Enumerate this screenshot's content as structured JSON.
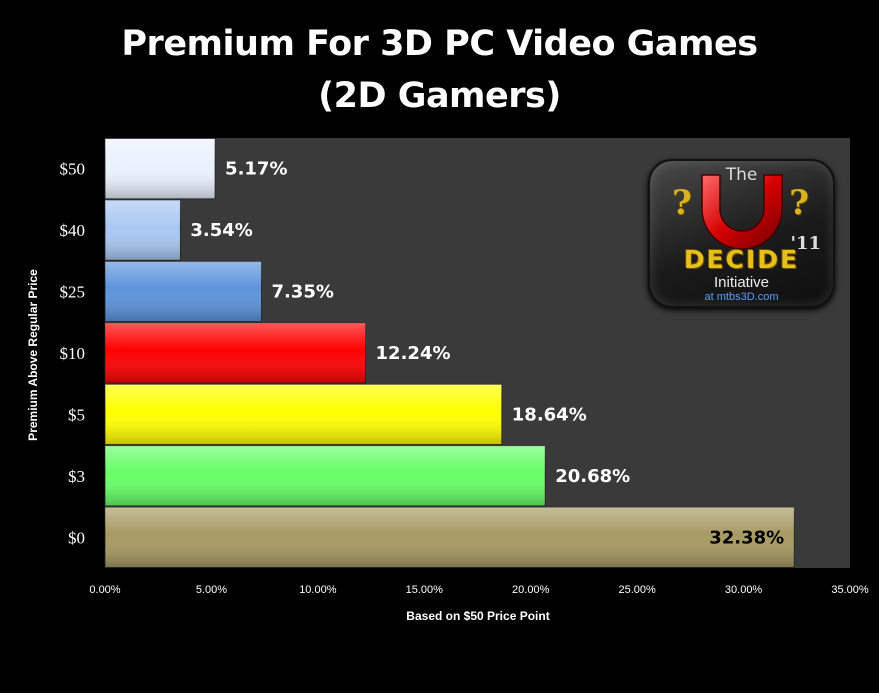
{
  "chart_data": {
    "type": "bar",
    "orientation": "horizontal",
    "title_line1": "Premium For 3D PC Video Games",
    "title_line2": "(2D Gamers)",
    "xlabel": "Based on $50 Price Point",
    "ylabel": "Premium Above Regular Price",
    "categories": [
      "$50",
      "$40",
      "$25",
      "$10",
      "$5",
      "$3",
      "$0"
    ],
    "values": [
      5.17,
      3.54,
      7.35,
      12.24,
      18.64,
      20.68,
      32.38
    ],
    "data_labels": [
      "5.17%",
      "3.54%",
      "7.35%",
      "12.24%",
      "18.64%",
      "20.68%",
      "32.38%"
    ],
    "bar_colors": [
      "#eaf2ff",
      "#a9c8f2",
      "#5b93dc",
      "#ff0000",
      "#ffff00",
      "#66ff66",
      "#a79a62"
    ],
    "xlim": [
      0,
      35
    ],
    "xticks": [
      "0.00%",
      "5.00%",
      "10.00%",
      "15.00%",
      "20.00%",
      "25.00%",
      "30.00%",
      "35.00%"
    ],
    "plot_background": "#3a3a3a",
    "grid": false,
    "legend": "none"
  },
  "logo": {
    "top": "The",
    "word": "DECIDE",
    "year": "'11",
    "sub": "Initiative",
    "site": "at mtbs3D.com",
    "q1": "?",
    "q2": "?"
  }
}
